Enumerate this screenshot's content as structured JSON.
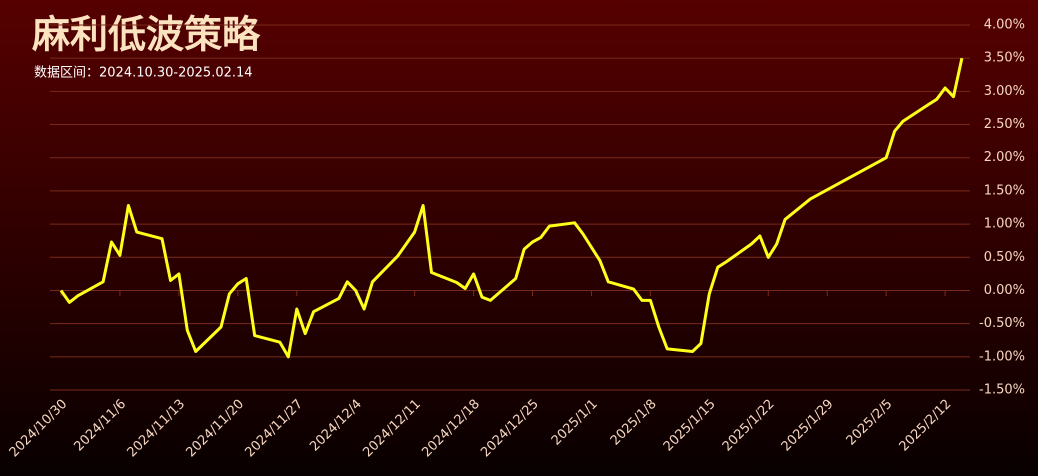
{
  "chart_data": {
    "type": "line",
    "title": "麻利低波策略",
    "subtitle": "数据区间：2024.10.30-2025.02.14",
    "x": [
      "2024/10/30",
      "2024/10/31",
      "2024/11/1",
      "2024/11/4",
      "2024/11/5",
      "2024/11/6",
      "2024/11/7",
      "2024/11/8",
      "2024/11/11",
      "2024/11/12",
      "2024/11/13",
      "2024/11/14",
      "2024/11/15",
      "2024/11/18",
      "2024/11/19",
      "2024/11/20",
      "2024/11/21",
      "2024/11/22",
      "2024/11/25",
      "2024/11/26",
      "2024/11/27",
      "2024/11/28",
      "2024/11/29",
      "2024/12/2",
      "2024/12/3",
      "2024/12/4",
      "2024/12/5",
      "2024/12/6",
      "2024/12/9",
      "2024/12/10",
      "2024/12/11",
      "2024/12/12",
      "2024/12/13",
      "2024/12/16",
      "2024/12/17",
      "2024/12/18",
      "2024/12/19",
      "2024/12/20",
      "2024/12/23",
      "2024/12/24",
      "2024/12/25",
      "2024/12/26",
      "2024/12/27",
      "2024/12/30",
      "2024/12/31",
      "2025/1/2",
      "2025/1/3",
      "2025/1/6",
      "2025/1/7",
      "2025/1/8",
      "2025/1/9",
      "2025/1/10",
      "2025/1/13",
      "2025/1/14",
      "2025/1/15",
      "2025/1/16",
      "2025/1/17",
      "2025/1/20",
      "2025/1/21",
      "2025/1/22",
      "2025/1/23",
      "2025/1/24",
      "2025/1/27",
      "2025/2/5",
      "2025/2/6",
      "2025/2/7",
      "2025/2/10",
      "2025/2/11",
      "2025/2/12",
      "2025/2/13",
      "2025/2/14"
    ],
    "series": [
      {
        "name": "麻利低波策略",
        "color": "#ffff1a",
        "values": [
          0.0,
          -0.18,
          -0.08,
          0.13,
          0.73,
          0.53,
          1.28,
          0.88,
          0.78,
          0.15,
          0.25,
          -0.6,
          -0.92,
          -0.55,
          -0.05,
          0.1,
          0.18,
          -0.68,
          -0.78,
          -1.0,
          -0.28,
          -0.65,
          -0.32,
          -0.12,
          0.13,
          0.0,
          -0.28,
          0.13,
          0.52,
          0.7,
          0.88,
          1.28,
          0.27,
          0.12,
          0.03,
          0.25,
          -0.1,
          -0.15,
          0.18,
          0.62,
          0.73,
          0.8,
          0.97,
          1.02,
          0.85,
          0.45,
          0.13,
          0.02,
          -0.15,
          -0.15,
          -0.55,
          -0.88,
          -0.92,
          -0.8,
          -0.05,
          0.35,
          0.43,
          0.7,
          0.82,
          0.5,
          0.7,
          1.07,
          1.38,
          2.0,
          2.4,
          2.55,
          2.8,
          2.88,
          3.05,
          2.92,
          3.5
        ]
      }
    ],
    "xticks": [
      "2024/10/30",
      "2024/11/6",
      "2024/11/13",
      "2024/11/20",
      "2024/11/27",
      "2024/12/4",
      "2024/12/11",
      "2024/12/18",
      "2024/12/25",
      "2025/1/1",
      "2025/1/8",
      "2025/1/15",
      "2025/1/22",
      "2025/1/29",
      "2025/2/5",
      "2025/2/12"
    ],
    "ylim": [
      -1.5,
      4
    ],
    "yticks": [
      {
        "value": -1.5,
        "label": "-1.50%"
      },
      {
        "value": -1,
        "label": "-1.00%"
      },
      {
        "value": -0.5,
        "label": "-0.50%"
      },
      {
        "value": 0,
        "label": "0.00%"
      },
      {
        "value": 0.5,
        "label": "0.50%"
      },
      {
        "value": 1,
        "label": "1.00%"
      },
      {
        "value": 1.5,
        "label": "1.50%"
      },
      {
        "value": 2,
        "label": "2.00%"
      },
      {
        "value": 2.5,
        "label": "2.50%"
      },
      {
        "value": 3,
        "label": "3.00%"
      },
      {
        "value": 3.5,
        "label": "3.50%"
      },
      {
        "value": 4,
        "label": "4.00%"
      }
    ],
    "grid": true
  }
}
